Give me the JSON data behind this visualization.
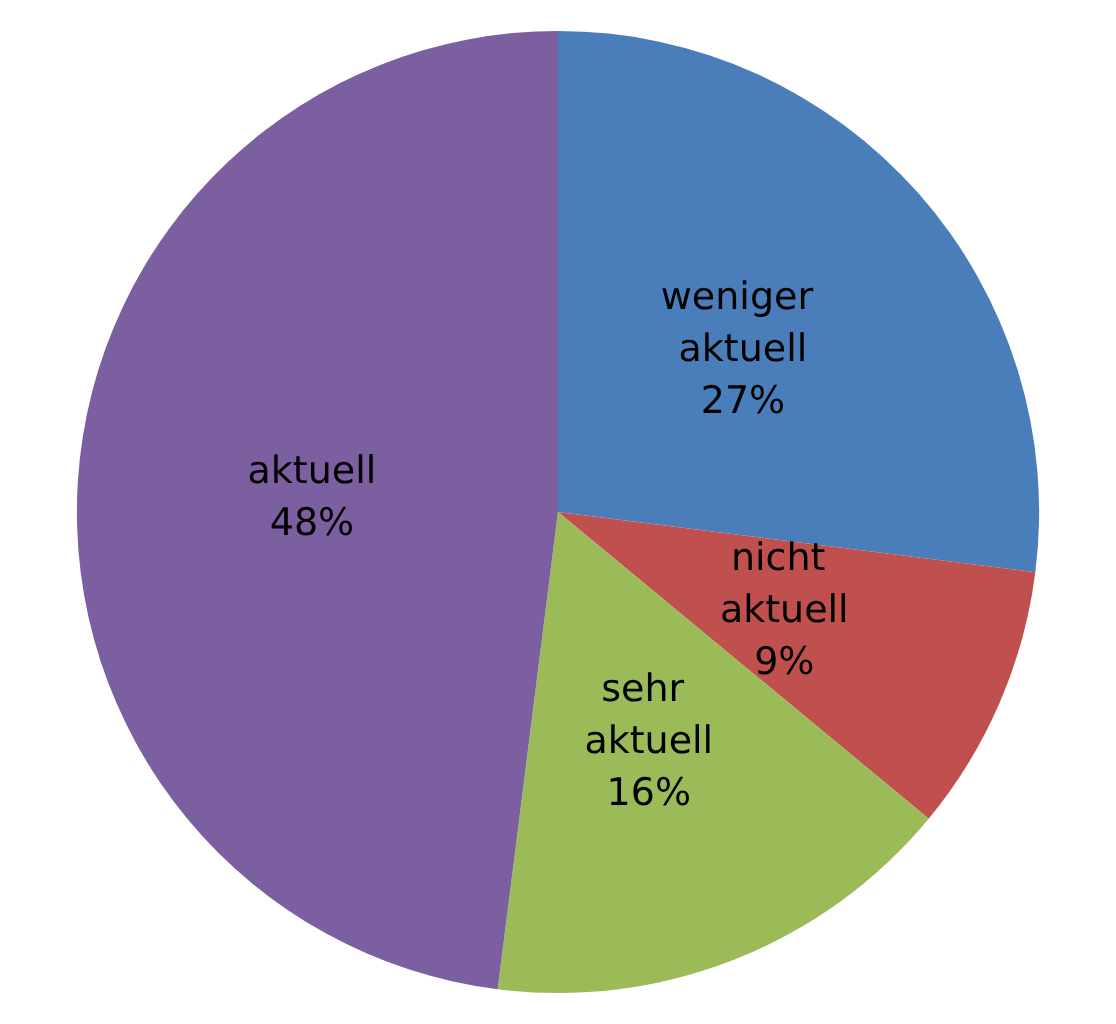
{
  "chart_data": {
    "type": "pie",
    "categories": [
      "weniger aktuell",
      "nicht aktuell",
      "sehr aktuell",
      "aktuell"
    ],
    "values": [
      27,
      9,
      16,
      48
    ],
    "value_labels": [
      "27%",
      "9%",
      "16%",
      "48%"
    ],
    "colors": [
      "#4a7ebb",
      "#c0504d",
      "#9bbb59",
      "#7c5fa0"
    ],
    "legend": false
  }
}
